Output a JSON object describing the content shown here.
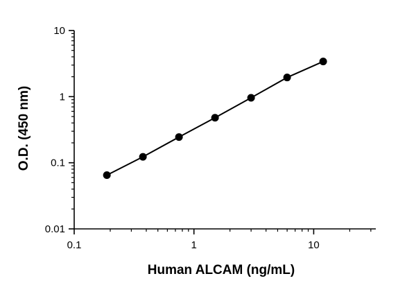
{
  "chart_data": {
    "type": "line",
    "xlabel": "Human ALCAM (ng/mL)",
    "ylabel": "O.D. (450 nm)",
    "xscale": "log",
    "yscale": "log",
    "xlim": [
      0.1,
      33
    ],
    "ylim": [
      0.01,
      10
    ],
    "xticks": [
      {
        "value": 0.1,
        "label": "0.1"
      },
      {
        "value": 1,
        "label": "1"
      },
      {
        "value": 10,
        "label": "10"
      }
    ],
    "yticks": [
      {
        "value": 0.01,
        "label": "0.01"
      },
      {
        "value": 0.1,
        "label": "0.1"
      },
      {
        "value": 1,
        "label": "1"
      },
      {
        "value": 10,
        "label": "10"
      }
    ],
    "minor_ticks": true,
    "grid": false,
    "series": [
      {
        "x": [
          0.1875,
          0.375,
          0.75,
          1.5,
          3,
          6,
          12
        ],
        "y": [
          0.065,
          0.123,
          0.245,
          0.48,
          0.96,
          1.95,
          3.4
        ]
      }
    ],
    "colors": {
      "line": "#000000",
      "marker": "#000000"
    }
  }
}
